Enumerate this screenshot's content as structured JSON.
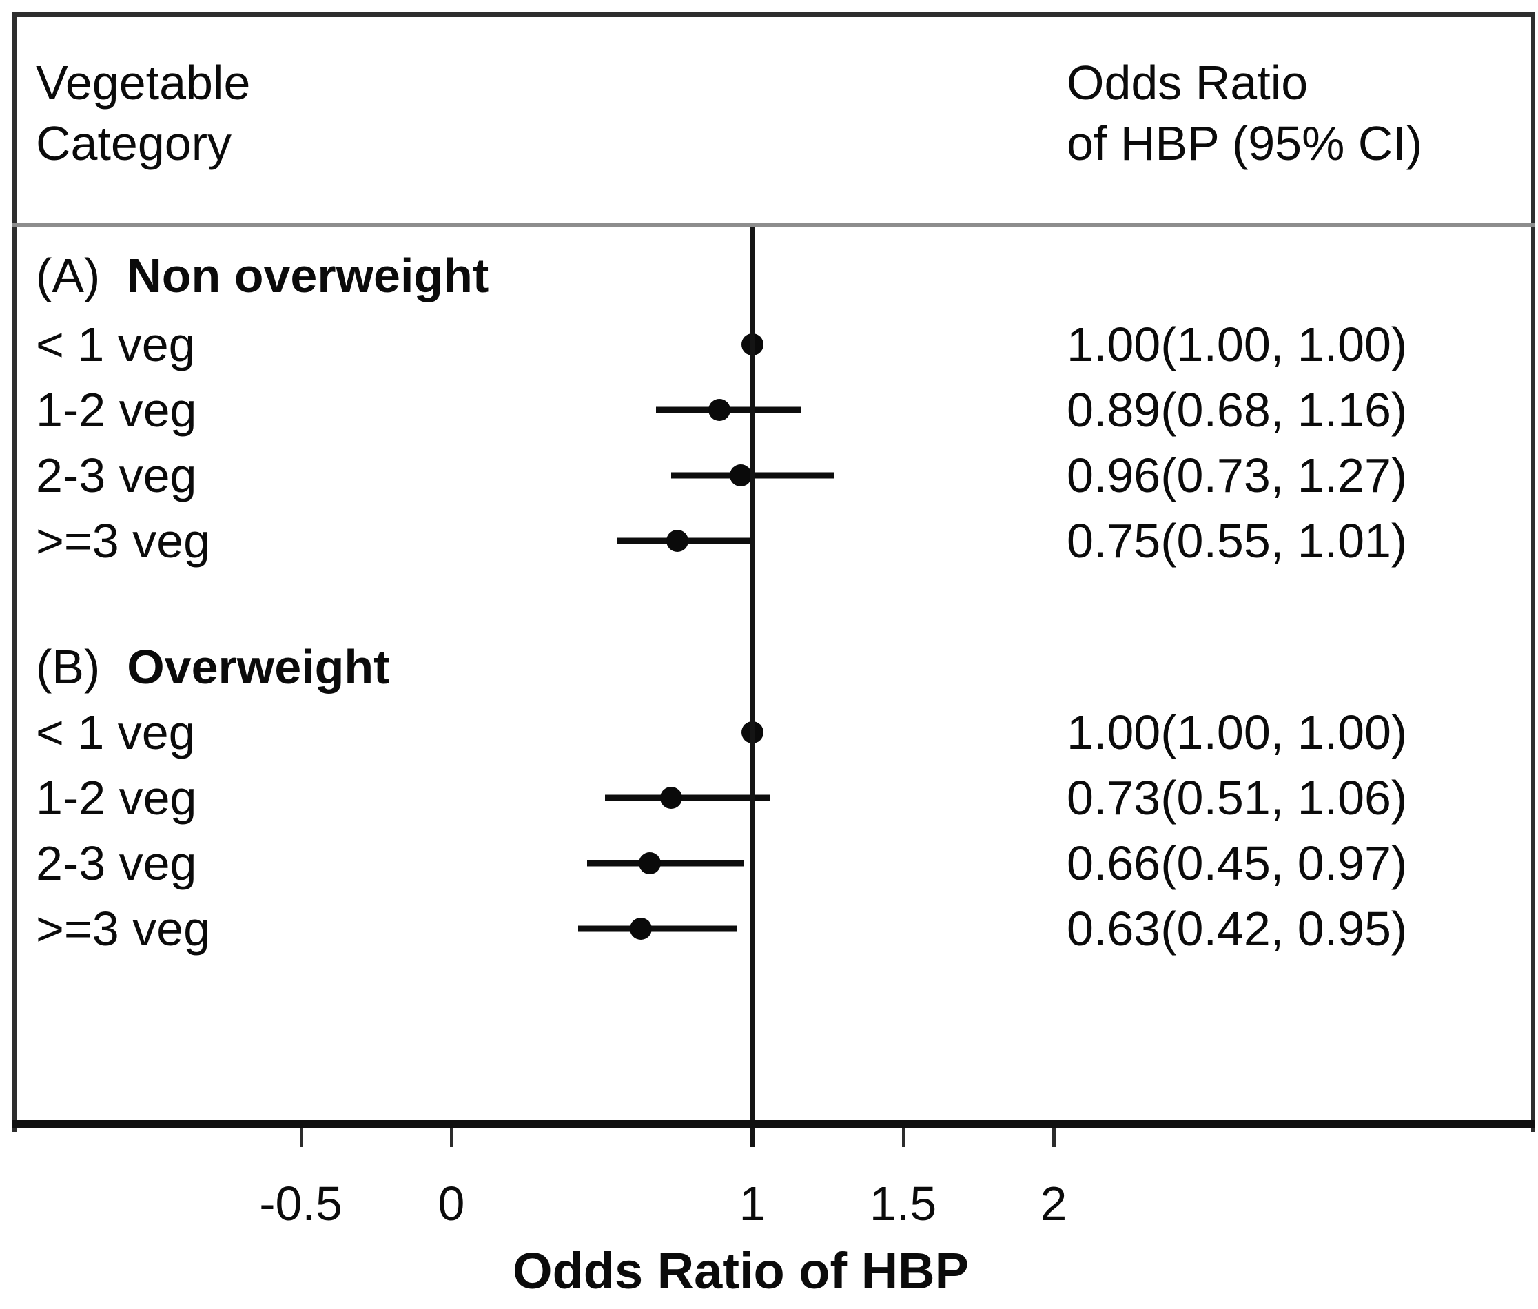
{
  "figure": {
    "header": {
      "left_line1": "Vegetable",
      "left_line2": "Category",
      "right_line1": "Odds Ratio",
      "right_line2": "of HBP (95% CI)"
    }
  },
  "chart_data": {
    "type": "forest",
    "title": "",
    "xlabel": "Odds Ratio of HBP",
    "ylabel": "",
    "x_ticks": [
      -0.5,
      0,
      1,
      1.5,
      2
    ],
    "x_tick_labels": [
      "-0.5",
      "0",
      "1",
      "1.5",
      "2"
    ],
    "reference_line_x": 1,
    "xlim": [
      -1.45,
      3.6
    ],
    "grid": false,
    "legend": false,
    "marker_color": "#0a0a0a",
    "line_color": "#0d0d0d",
    "groups": [
      {
        "label_prefix": "(A)",
        "label": "Non overweight",
        "rows": [
          {
            "category": "< 1 veg",
            "or": 1.0,
            "ci_low": 1.0,
            "ci_high": 1.0,
            "display": "1.00(1.00, 1.00)"
          },
          {
            "category": "1-2 veg",
            "or": 0.89,
            "ci_low": 0.68,
            "ci_high": 1.16,
            "display": "0.89(0.68, 1.16)"
          },
          {
            "category": "2-3 veg",
            "or": 0.96,
            "ci_low": 0.73,
            "ci_high": 1.27,
            "display": "0.96(0.73, 1.27)"
          },
          {
            "category": ">=3 veg",
            "or": 0.75,
            "ci_low": 0.55,
            "ci_high": 1.01,
            "display": "0.75(0.55, 1.01)"
          }
        ]
      },
      {
        "label_prefix": "(B)",
        "label": "Overweight",
        "rows": [
          {
            "category": "< 1 veg",
            "or": 1.0,
            "ci_low": 1.0,
            "ci_high": 1.0,
            "display": "1.00(1.00, 1.00)"
          },
          {
            "category": "1-2 veg",
            "or": 0.73,
            "ci_low": 0.51,
            "ci_high": 1.06,
            "display": "0.73(0.51, 1.06)"
          },
          {
            "category": "2-3 veg",
            "or": 0.66,
            "ci_low": 0.45,
            "ci_high": 0.97,
            "display": "0.66(0.45, 0.97)"
          },
          {
            "category": ">=3 veg",
            "or": 0.63,
            "ci_low": 0.42,
            "ci_high": 0.95,
            "display": "0.63(0.42, 0.95)"
          }
        ]
      }
    ]
  }
}
